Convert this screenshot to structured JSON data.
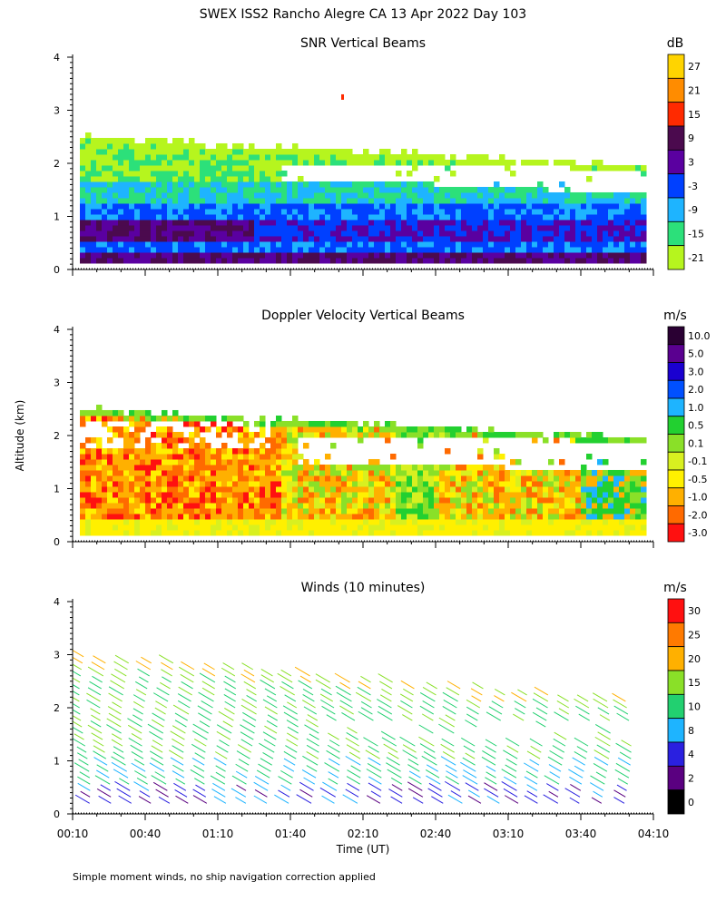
{
  "page": {
    "title": "SWEX ISS2 Rancho Alegre CA  13 Apr 2022 Day 103",
    "y_axis_label": "Altitude (km)",
    "x_axis_label": "Time (UT)",
    "footnote": "Simple moment winds, no ship navigation correction applied"
  },
  "chart_data": [
    {
      "type": "heatmap",
      "title": "SNR Vertical Beams",
      "xlabel": "",
      "ylabel": "Altitude (km)",
      "ylim": [
        0,
        4
      ],
      "y_ticks": [
        "0",
        "1",
        "2",
        "3",
        "4"
      ],
      "x_range_minutes": [
        10,
        250
      ],
      "colorbar": {
        "unit": "dB",
        "labels": [
          "27",
          "21",
          "15",
          "9",
          "3",
          "-3",
          "-9",
          "-15",
          "-21"
        ],
        "colors": [
          "#FFD400",
          "#FF8C00",
          "#FF2A00",
          "#4B0A4E",
          "#5A00A0",
          "#0040FF",
          "#1EB4FF",
          "#2CE07A",
          "#B6F51E"
        ]
      }
    },
    {
      "type": "heatmap",
      "title": "Doppler Velocity Vertical Beams",
      "xlabel": "",
      "ylabel": "Altitude (km)",
      "ylim": [
        0,
        4
      ],
      "y_ticks": [
        "0",
        "1",
        "2",
        "3",
        "4"
      ],
      "x_range_minutes": [
        10,
        250
      ],
      "colorbar": {
        "unit": "m/s",
        "labels": [
          "10.0",
          "5.0",
          "3.0",
          "2.0",
          "1.0",
          "0.5",
          "0.1",
          "-0.1",
          "-0.5",
          "-1.0",
          "-2.0",
          "-3.0"
        ],
        "colors": [
          "#2A0033",
          "#5A0090",
          "#1A00D0",
          "#0050FF",
          "#1EB4FF",
          "#22D030",
          "#8AE028",
          "#D8F020",
          "#FFF000",
          "#FFB000",
          "#FF6A00",
          "#FF1010"
        ]
      }
    },
    {
      "type": "scatter",
      "title": "Winds (10 minutes)",
      "xlabel": "Time (UT)",
      "ylabel": "Altitude (km)",
      "ylim": [
        0,
        4
      ],
      "y_ticks": [
        "0",
        "1",
        "2",
        "3",
        "4"
      ],
      "x_range_minutes": [
        10,
        250
      ],
      "x_ticks": [
        "00:10",
        "00:40",
        "01:10",
        "01:40",
        "02:10",
        "02:40",
        "03:10",
        "03:40",
        "04:10"
      ],
      "x_tick_minutes": [
        10,
        40,
        70,
        100,
        130,
        160,
        190,
        220,
        250
      ],
      "colorbar": {
        "unit": "m/s",
        "labels": [
          "30",
          "25",
          "20",
          "15",
          "10",
          "8",
          "4",
          "2",
          "0"
        ],
        "colors": [
          "#FF1010",
          "#FF7A00",
          "#FFB000",
          "#8AE028",
          "#22D070",
          "#1EB4FF",
          "#2A20E0",
          "#5A0080",
          "#000000"
        ]
      }
    }
  ]
}
